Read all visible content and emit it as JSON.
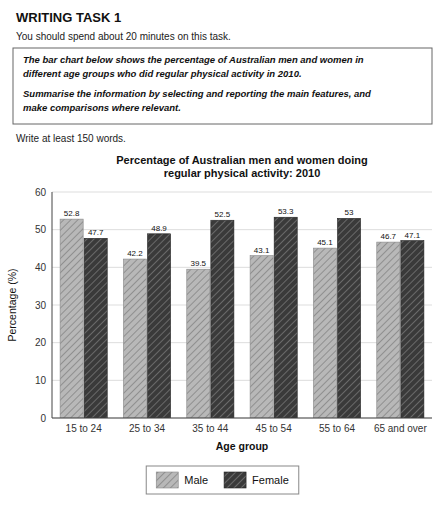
{
  "chart_data": {
    "type": "bar",
    "title": "Percentage of Australian men and women doing\nregular physical activity: 2010",
    "annotations": [
      "WRITING TASK 1",
      "You should spend about 20 minutes on this task.",
      "The bar chart below shows the percentage of Australian men and women in\ndifferent age groups who did regular physical activity in 2010.",
      "Summarise the information by selecting and reporting the main features, and\nmake comparisons where relevant.",
      "Write at least 150 words."
    ],
    "categories": [
      "15 to 24",
      "25 to 34",
      "35 to 44",
      "45 to 54",
      "55 to 64",
      "65 and over"
    ],
    "series": [
      {
        "name": "Male",
        "color": "#b8b8b8",
        "values": [
          52.8,
          42.2,
          39.5,
          43.1,
          45.1,
          46.7
        ]
      },
      {
        "name": "Female",
        "color": "#3a3a3a",
        "values": [
          47.7,
          48.9,
          52.5,
          53.3,
          53.0,
          47.1
        ]
      }
    ],
    "xlabel": "Age group",
    "ylabel": "Percentage (%)",
    "ylim": [
      0,
      60
    ],
    "yticks": [
      0,
      10,
      20,
      30,
      40,
      50,
      60
    ],
    "grid": true,
    "data_labels": true,
    "legend": "bottom"
  }
}
